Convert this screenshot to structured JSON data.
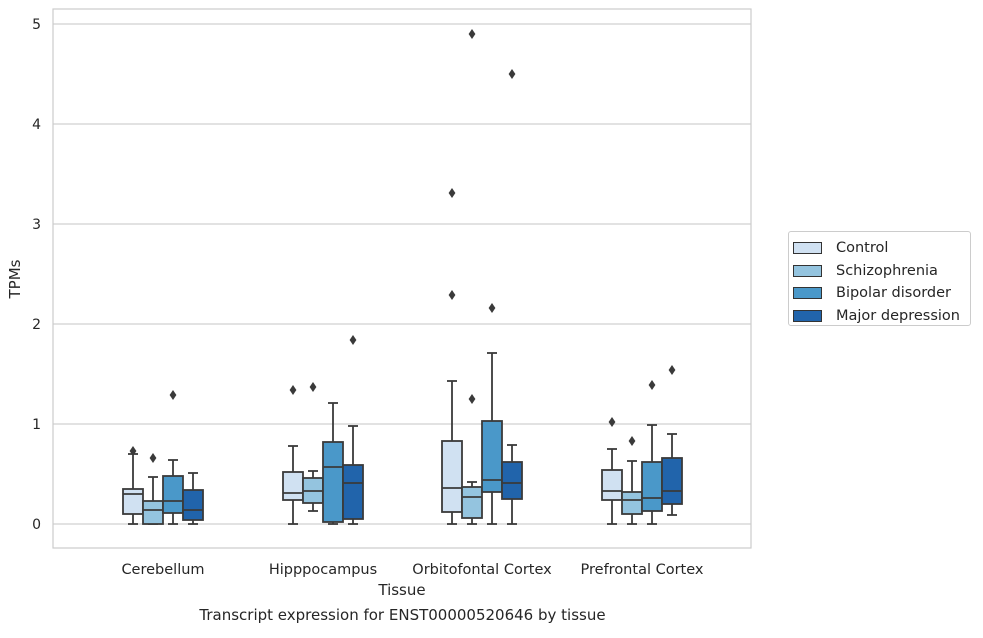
{
  "caption": "Transcript expression for ENST00000520646 by tissue",
  "chart_data": {
    "type": "box",
    "xlabel": "Tissue",
    "ylabel": "TPMs",
    "ylim": [
      -0.24,
      5.15
    ],
    "yticks": [
      0,
      1,
      2,
      3,
      4,
      5
    ],
    "grid": "horizontal",
    "legend_position": "right",
    "categories": [
      "Cerebellum",
      "Hipppocampus",
      "Orbitofontal Cortex",
      "Prefrontal Cortex"
    ],
    "series": [
      {
        "name": "Control",
        "color": "#d0e1f2",
        "boxes": [
          {
            "whisker_low": 0.0,
            "q1": 0.1,
            "median": 0.3,
            "q3": 0.35,
            "whisker_high": 0.7,
            "outliers": [
              0.73
            ]
          },
          {
            "whisker_low": 0.0,
            "q1": 0.24,
            "median": 0.31,
            "q3": 0.52,
            "whisker_high": 0.78,
            "outliers": [
              1.34
            ]
          },
          {
            "whisker_low": 0.0,
            "q1": 0.12,
            "median": 0.36,
            "q3": 0.83,
            "whisker_high": 1.43,
            "outliers": [
              2.29,
              3.31
            ]
          },
          {
            "whisker_low": 0.0,
            "q1": 0.24,
            "median": 0.33,
            "q3": 0.54,
            "whisker_high": 0.75,
            "outliers": [
              1.02
            ]
          }
        ]
      },
      {
        "name": "Schizophrenia",
        "color": "#94c4df",
        "boxes": [
          {
            "whisker_low": 0.0,
            "q1": 0.0,
            "median": 0.14,
            "q3": 0.23,
            "whisker_high": 0.47,
            "outliers": [
              0.66
            ]
          },
          {
            "whisker_low": 0.13,
            "q1": 0.21,
            "median": 0.33,
            "q3": 0.46,
            "whisker_high": 0.53,
            "outliers": [
              1.37
            ]
          },
          {
            "whisker_low": 0.0,
            "q1": 0.06,
            "median": 0.27,
            "q3": 0.37,
            "whisker_high": 0.42,
            "outliers": [
              1.25,
              4.9
            ]
          },
          {
            "whisker_low": 0.0,
            "q1": 0.1,
            "median": 0.24,
            "q3": 0.32,
            "whisker_high": 0.63,
            "outliers": [
              0.83
            ]
          }
        ]
      },
      {
        "name": "Bipolar disorder",
        "color": "#4a98c9",
        "boxes": [
          {
            "whisker_low": 0.0,
            "q1": 0.11,
            "median": 0.23,
            "q3": 0.48,
            "whisker_high": 0.64,
            "outliers": [
              1.29
            ]
          },
          {
            "whisker_low": 0.0,
            "q1": 0.02,
            "median": 0.57,
            "q3": 0.82,
            "whisker_high": 1.21,
            "outliers": []
          },
          {
            "whisker_low": 0.0,
            "q1": 0.32,
            "median": 0.44,
            "q3": 1.03,
            "whisker_high": 1.71,
            "outliers": [
              2.16
            ]
          },
          {
            "whisker_low": 0.0,
            "q1": 0.13,
            "median": 0.26,
            "q3": 0.62,
            "whisker_high": 0.99,
            "outliers": [
              1.39
            ]
          }
        ]
      },
      {
        "name": "Major depression",
        "color": "#2164ab",
        "boxes": [
          {
            "whisker_low": 0.0,
            "q1": 0.04,
            "median": 0.14,
            "q3": 0.34,
            "whisker_high": 0.51,
            "outliers": []
          },
          {
            "whisker_low": 0.0,
            "q1": 0.05,
            "median": 0.41,
            "q3": 0.59,
            "whisker_high": 0.98,
            "outliers": [
              1.84
            ]
          },
          {
            "whisker_low": 0.0,
            "q1": 0.25,
            "median": 0.41,
            "q3": 0.62,
            "whisker_high": 0.79,
            "outliers": [
              4.5
            ]
          },
          {
            "whisker_low": 0.09,
            "q1": 0.2,
            "median": 0.33,
            "q3": 0.66,
            "whisker_high": 0.9,
            "outliers": [
              1.54
            ]
          }
        ]
      }
    ]
  }
}
